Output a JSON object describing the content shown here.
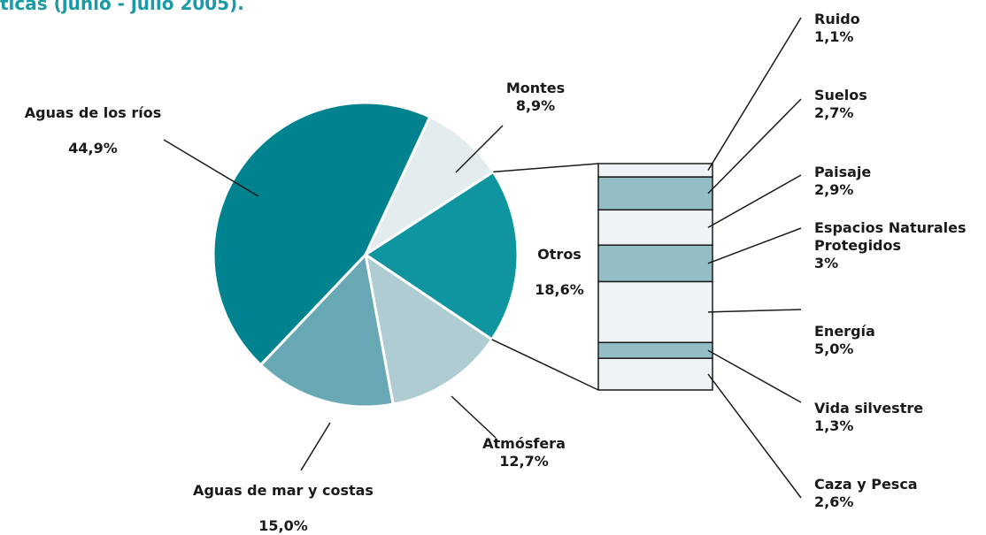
{
  "chart_data": {
    "type": "pie-of-bar",
    "title": "ticas (junio - julio 2005).",
    "categories": [
      "Montes",
      "Otros",
      "Atmósfera",
      "Aguas de mar y costas",
      "Aguas de los ríos"
    ],
    "values": [
      8.9,
      18.6,
      12.7,
      15.0,
      44.9
    ],
    "value_labels": [
      "8,9%",
      "18,6%",
      "12,7%",
      "15,0%",
      "44,9%"
    ],
    "colors": [
      "#e3ecef",
      "#0e95a0",
      "#b0ccd3",
      "#68a8b5",
      "#00838f"
    ],
    "breakdown": {
      "categories": [
        "Ruido",
        "Suelos",
        "Paisaje",
        "Espacios Naturales Protegidos",
        "Energía",
        "Vida silvestre",
        "Caza y Pesca"
      ],
      "values": [
        1.1,
        2.7,
        2.9,
        3,
        5.0,
        1.3,
        2.6
      ],
      "value_labels": [
        "1,1%",
        "2,7%",
        "2,9%",
        "3%",
        "5,0%",
        "1,3%",
        "2,6%"
      ],
      "colors": [
        "#eef4f5",
        "#93bec6",
        "#eef4f5",
        "#93bec6",
        "#eef4f5",
        "#93bec6",
        "#eef4f5"
      ]
    }
  }
}
